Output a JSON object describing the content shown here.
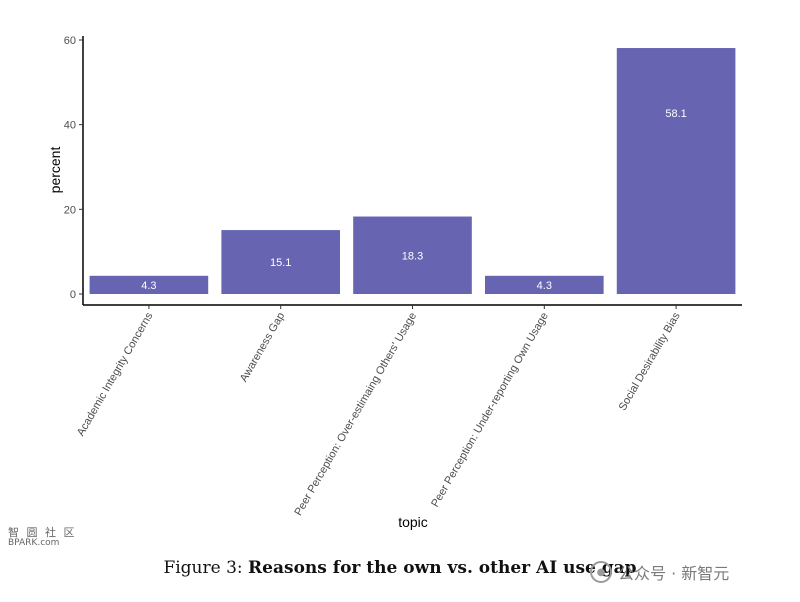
{
  "chart_data": {
    "type": "bar",
    "categories": [
      "Academic Integrity Concerns",
      "Awareness Gap",
      "Peer Perception: Over-estimaing Others' Usage",
      "Peer Perception: Under-reporting Own Usage",
      "Social Desirability Bias"
    ],
    "values": [
      4.3,
      15.1,
      18.3,
      4.3,
      58.1
    ],
    "data_labels": [
      "4.3",
      "15.1",
      "18.3",
      "4.3",
      "58.1"
    ],
    "xlabel": "topic",
    "ylabel": "percent",
    "ylim": [
      0,
      60
    ],
    "yticks": [
      0,
      20,
      40,
      60
    ],
    "bar_color": "#6764b2",
    "grid": false
  },
  "caption": {
    "prefix": "Figure 3: ",
    "title": "Reasons for the own vs. other AI use gap"
  },
  "watermark": {
    "left_line1": "智 圆 社 区",
    "left_line2": "BPARK.com",
    "right_icon": "wechat-icon",
    "right_text": "公众号 · 新智元"
  }
}
